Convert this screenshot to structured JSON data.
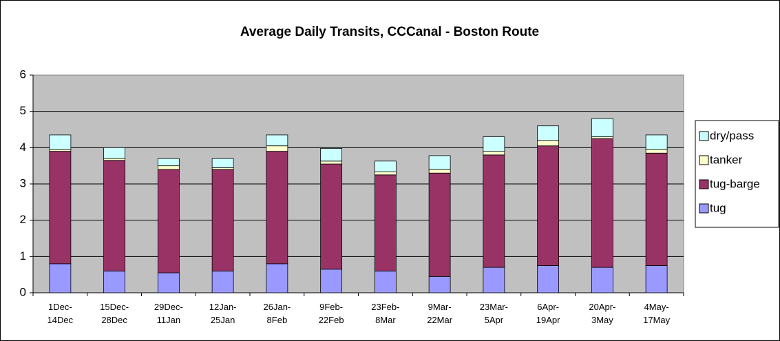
{
  "chart_data": {
    "type": "stacked-bar",
    "title": "Average Daily Transits, CCCanal - Boston Route",
    "categories": [
      "1Dec-14Dec",
      "15Dec-28Dec",
      "29Dec-11Jan",
      "12Jan-25Jan",
      "26Jan-8Feb",
      "9Feb-22Feb",
      "23Feb-8Mar",
      "9Mar-22Mar",
      "23Mar-5Apr",
      "6Apr-19Apr",
      "20Apr-3May",
      "4May-17May"
    ],
    "series": [
      {
        "name": "tug",
        "color": "#9999ff",
        "values": [
          0.8,
          0.6,
          0.55,
          0.6,
          0.8,
          0.65,
          0.6,
          0.45,
          0.7,
          0.75,
          0.7,
          0.75
        ]
      },
      {
        "name": "tug-barge",
        "color": "#993366",
        "values": [
          3.1,
          3.05,
          2.85,
          2.8,
          3.1,
          2.9,
          2.65,
          2.85,
          3.1,
          3.3,
          3.55,
          3.1
        ]
      },
      {
        "name": "tanker",
        "color": "#ffffcc",
        "values": [
          0.05,
          0.05,
          0.1,
          0.05,
          0.15,
          0.08,
          0.08,
          0.1,
          0.1,
          0.15,
          0.05,
          0.1
        ]
      },
      {
        "name": "dry/pass",
        "color": "#ccffff",
        "values": [
          0.4,
          0.3,
          0.2,
          0.25,
          0.3,
          0.35,
          0.3,
          0.38,
          0.4,
          0.4,
          0.5,
          0.4
        ]
      }
    ],
    "ylim": [
      0,
      6
    ],
    "yticks": [
      0,
      1,
      2,
      3,
      4,
      5,
      6
    ],
    "grid": true,
    "legend": "right"
  }
}
